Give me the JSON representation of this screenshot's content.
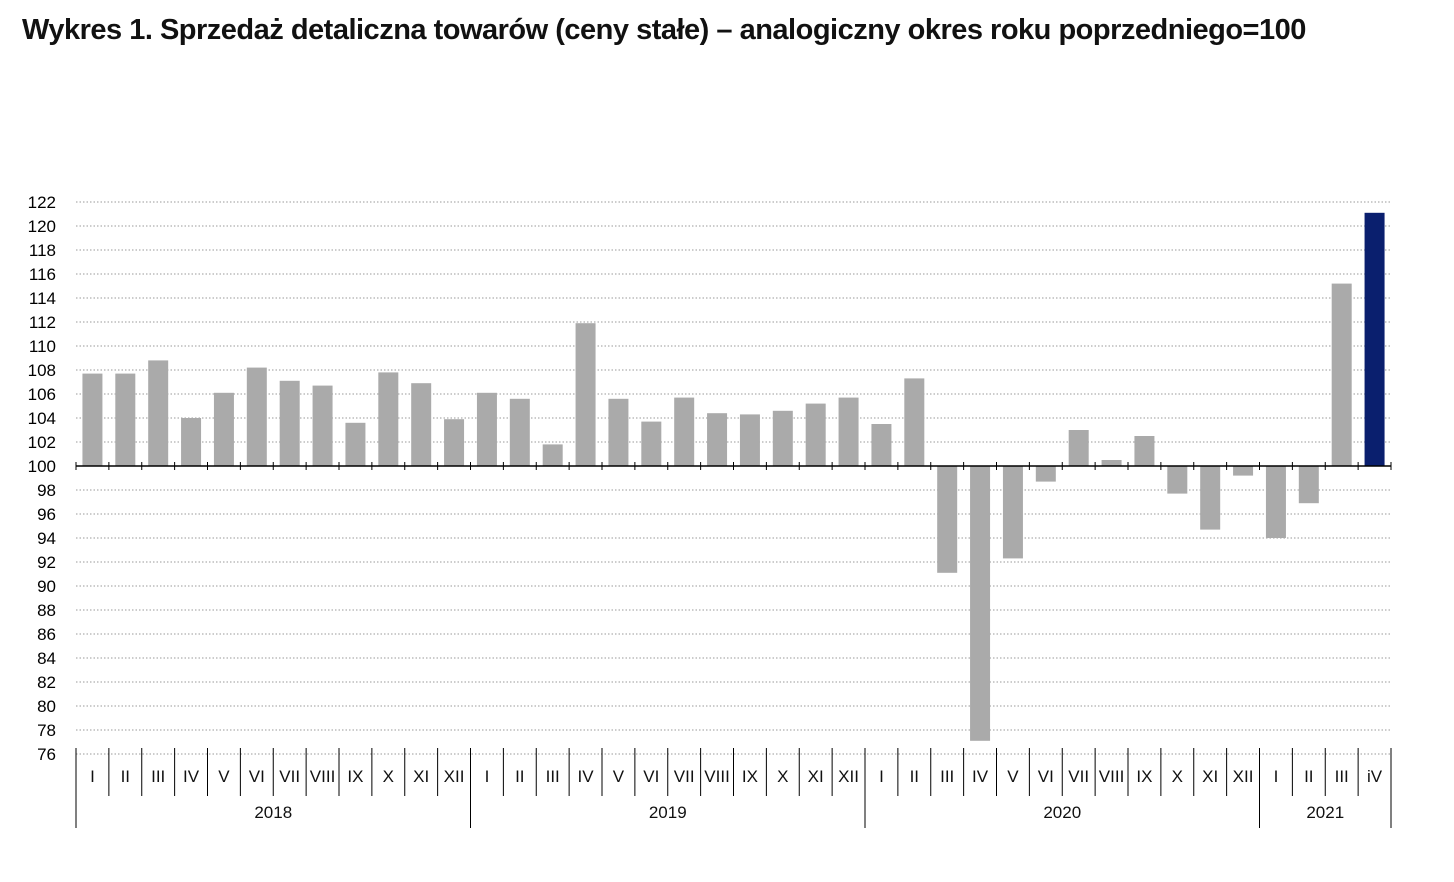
{
  "chart_data": {
    "type": "bar",
    "title": "Wykres 1. Sprzedaż detaliczna towarów (ceny stałe) – analogiczny okres roku poprzedniego=100",
    "xlabel": "",
    "ylabel": "",
    "ylim": [
      76,
      122
    ],
    "ytick_step": 2,
    "baseline": 100,
    "grid": true,
    "legend": "none",
    "colors": {
      "bar": "#aaaaaa",
      "highlight": "#0a1f6e",
      "grid": "#9a9a9a",
      "axis": "#000000"
    },
    "years": [
      {
        "label": "2018",
        "months": [
          "I",
          "II",
          "III",
          "IV",
          "V",
          "VI",
          "VII",
          "VIII",
          "IX",
          "X",
          "XI",
          "XII"
        ]
      },
      {
        "label": "2019",
        "months": [
          "I",
          "II",
          "III",
          "IV",
          "V",
          "VI",
          "VII",
          "VIII",
          "IX",
          "X",
          "XI",
          "XII"
        ]
      },
      {
        "label": "2020",
        "months": [
          "I",
          "II",
          "III",
          "IV",
          "V",
          "VI",
          "VII",
          "VIII",
          "IX",
          "X",
          "XI",
          "XII"
        ]
      },
      {
        "label": "2021",
        "months": [
          "I",
          "II",
          "III",
          "iV"
        ]
      }
    ],
    "values": [
      107.7,
      107.7,
      108.8,
      104.0,
      106.1,
      108.2,
      107.1,
      106.7,
      103.6,
      107.8,
      106.9,
      103.9,
      106.1,
      105.6,
      101.8,
      111.9,
      105.6,
      103.7,
      105.7,
      104.4,
      104.3,
      104.6,
      105.2,
      105.7,
      103.5,
      107.3,
      91.1,
      77.1,
      92.3,
      98.7,
      103.0,
      100.5,
      102.5,
      97.7,
      94.7,
      99.2,
      94.0,
      96.9,
      115.2,
      121.1
    ],
    "highlight_index": 39
  }
}
